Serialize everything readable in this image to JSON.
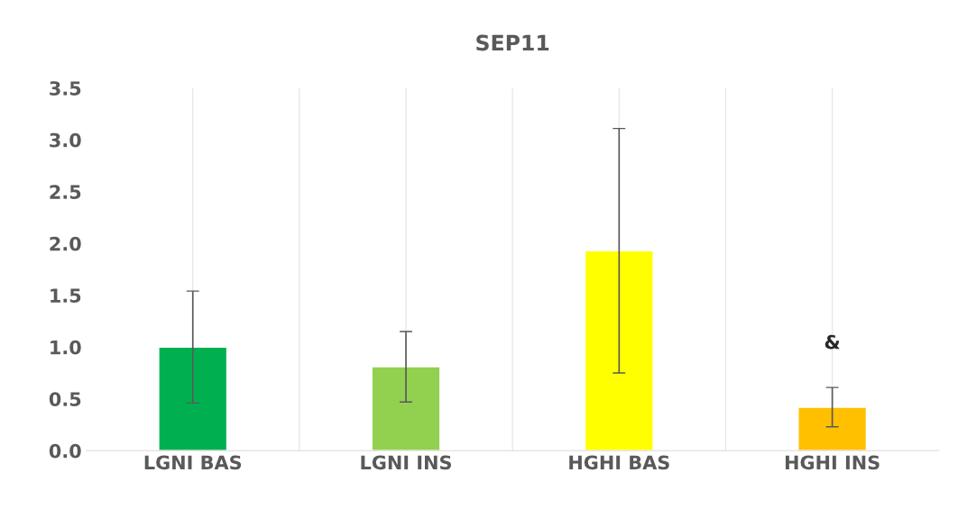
{
  "chart_data": {
    "type": "bar",
    "title": "SEP11",
    "categories": [
      "LGNI BAS",
      "LGNI INS",
      "HGHI BAS",
      "HGHI INS"
    ],
    "values": [
      1.0,
      0.81,
      1.93,
      0.42
    ],
    "colors": [
      "#00b050",
      "#92d050",
      "#ffff00",
      "#ffc000"
    ],
    "errors": [
      0.54,
      0.34,
      1.18,
      0.19
    ],
    "ylim": [
      0,
      3.5
    ],
    "yticks": [
      {
        "value": 0,
        "label": "0.0"
      },
      {
        "value": 0.5,
        "label": "0.5"
      },
      {
        "value": 1,
        "label": "1.0"
      },
      {
        "value": 1.5,
        "label": "1.5"
      },
      {
        "value": 2,
        "label": "2.0"
      },
      {
        "value": 2.5,
        "label": "2.5"
      },
      {
        "value": 3,
        "label": "3.0"
      },
      {
        "value": 3.5,
        "label": "3.5"
      }
    ],
    "grid": "x",
    "annotations": [
      "&"
    ]
  }
}
